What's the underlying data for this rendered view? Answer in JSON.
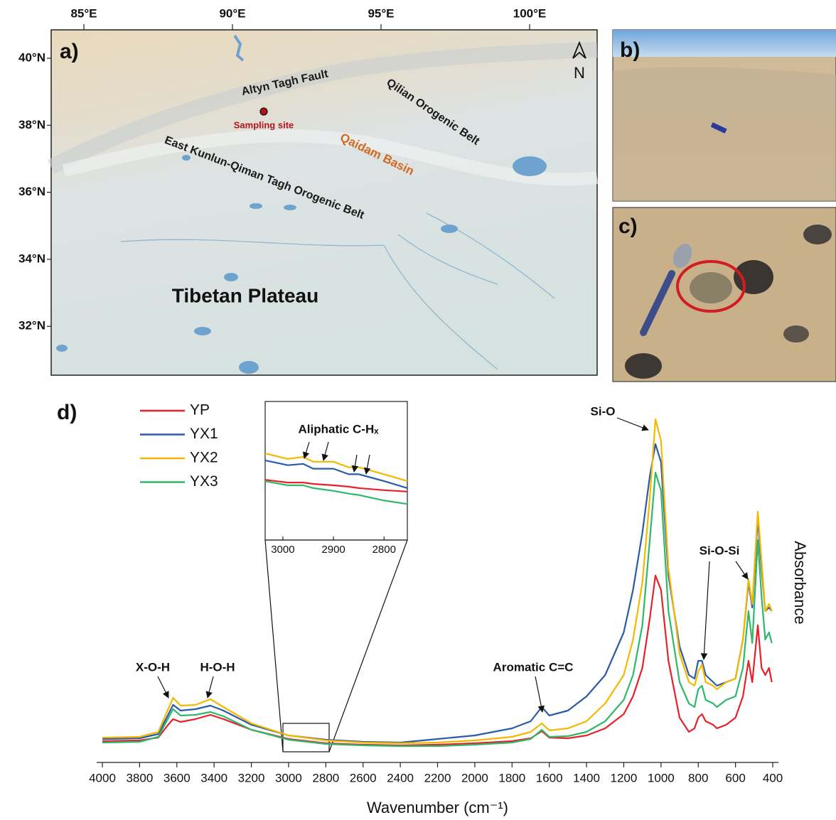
{
  "panels": {
    "map": {
      "label": "a)",
      "north": "N",
      "lon_ticks": [
        "85°E",
        "90°E",
        "95°E",
        "100°E"
      ],
      "lat_ticks": [
        "40°N",
        "38°N",
        "36°N",
        "34°N",
        "32°N"
      ],
      "features": {
        "fault": "Altyn Tagh Fault",
        "qilian": "Qilian Orogenic Belt",
        "site": "Sampling site",
        "basin": "Qaidam Basin",
        "kunlun": "East Kunlun-Qiman Tagh Orogenic Belt",
        "plateau": "Tibetan Plateau"
      }
    },
    "photo_b": {
      "label": "b)"
    },
    "photo_c": {
      "label": "c)"
    },
    "spectrum": {
      "label": "d)"
    }
  },
  "chart_data": [
    {
      "type": "line",
      "x_label": "Wavenumber (cm⁻¹)",
      "y_label": "Absorbance",
      "annotations": [
        "X-O-H",
        "H-O-H",
        "Aromatic C=C",
        "Si-O",
        "Si-O-Si"
      ],
      "xlim": [
        4000,
        400
      ],
      "ylim": [
        0,
        100
      ],
      "xticks": [
        4000,
        3800,
        3600,
        3400,
        3200,
        3000,
        2800,
        2600,
        2400,
        2200,
        2000,
        1800,
        1600,
        1400,
        1200,
        1000,
        800,
        600,
        400
      ],
      "x": [
        4000,
        3800,
        3700,
        3650,
        3620,
        3580,
        3500,
        3420,
        3350,
        3200,
        3000,
        2800,
        2600,
        2400,
        2200,
        2000,
        1800,
        1700,
        1640,
        1600,
        1500,
        1400,
        1300,
        1200,
        1150,
        1100,
        1060,
        1030,
        1000,
        960,
        900,
        850,
        820,
        800,
        780,
        760,
        720,
        700,
        650,
        600,
        560,
        530,
        510,
        480,
        460,
        440,
        420,
        405
      ],
      "series": [
        {
          "name": "YP",
          "color": "#e8202a",
          "values": [
            5.4,
            5.6,
            6.4,
            9.8,
            11.6,
            10.8,
            11.6,
            12.8,
            11.6,
            8.6,
            6,
            4.8,
            4.4,
            4.2,
            4.4,
            4.8,
            5.4,
            6.2,
            8.2,
            6.4,
            6.2,
            7,
            9,
            13,
            18,
            26,
            40,
            52,
            48,
            28,
            12,
            8,
            9,
            12,
            13,
            11,
            10,
            9,
            10,
            12,
            18,
            28,
            22,
            38,
            26,
            24,
            26,
            22
          ]
        },
        {
          "name": "YX1",
          "color": "#2a5ba8",
          "values": [
            6,
            6.2,
            7.4,
            12.5,
            15.6,
            14,
            14.4,
            15.4,
            14,
            10,
            7,
            5.8,
            5.2,
            5,
            6,
            7,
            9,
            11,
            15,
            12.6,
            14,
            18,
            24,
            36,
            48,
            64,
            80,
            89,
            84,
            52,
            32,
            24,
            23,
            28,
            28,
            24,
            22,
            21,
            22,
            23,
            34,
            50,
            43,
            68,
            54,
            42,
            43,
            42
          ]
        },
        {
          "name": "YX2",
          "color": "#f5b800",
          "values": [
            6.4,
            6.6,
            8,
            14,
            17.6,
            15.4,
            15.6,
            17.2,
            15,
            10.4,
            7,
            5.6,
            5,
            4.8,
            5,
            5.6,
            6.6,
            8,
            10.4,
            8.4,
            9,
            11,
            16,
            24,
            34,
            50,
            74,
            96,
            90,
            54,
            30,
            22,
            21,
            25,
            27,
            22,
            21,
            20,
            22,
            23,
            34,
            51,
            44,
            70,
            56,
            42,
            44,
            42
          ]
        },
        {
          "name": "YX3",
          "color": "#2fb86a",
          "values": [
            5,
            5.2,
            6.6,
            11.5,
            14.4,
            12.6,
            12.8,
            13.6,
            12.4,
            8.6,
            5.8,
            4.6,
            4.2,
            4,
            4,
            4.4,
            5,
            6,
            8.6,
            6.6,
            6.8,
            8,
            11,
            17,
            24,
            38,
            62,
            81,
            76,
            42,
            22,
            16,
            15,
            20,
            21,
            17,
            16,
            15,
            17,
            18,
            26,
            42,
            33,
            62,
            46,
            34,
            36,
            33
          ]
        }
      ]
    },
    {
      "type": "line",
      "annotations": [
        "Aliphatic C-Hₓ"
      ],
      "xlim": [
        3035,
        2754
      ],
      "ylim": [
        0,
        100
      ],
      "xticks": [
        3000,
        2900,
        2800
      ],
      "x": [
        3035,
        2990,
        2960,
        2940,
        2900,
        2870,
        2850,
        2800,
        2754
      ],
      "series": [
        {
          "color": "#f5b800",
          "values": [
            62.5,
            58.5,
            60,
            56.5,
            56.5,
            52.5,
            52.5,
            47.5,
            42.5
          ]
        },
        {
          "color": "#2a5ba8",
          "values": [
            57.5,
            54,
            55,
            51.5,
            51.5,
            47.5,
            47.5,
            42.5,
            37.5
          ]
        },
        {
          "color": "#e8202a",
          "values": [
            43.5,
            41.5,
            41.5,
            40.5,
            39.5,
            38.5,
            37.5,
            36,
            35
          ]
        },
        {
          "color": "#2fb86a",
          "values": [
            42.5,
            39.5,
            39.5,
            37.5,
            35.5,
            33.5,
            32.5,
            28.5,
            26
          ]
        }
      ]
    }
  ]
}
